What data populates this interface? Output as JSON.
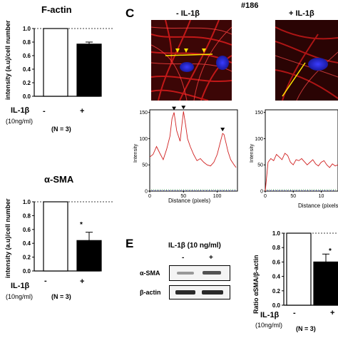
{
  "panel_a": {
    "title": "F-actin",
    "ylabel": "intensity (a.u)/cell number",
    "treatment_label": "IL-1β",
    "dose": "(10ng/ml)",
    "cond_minus": "-",
    "cond_plus": "+",
    "n": "(N = 3)",
    "star": "*",
    "ticks": [
      "1.0",
      "0.8",
      "0.6",
      "0.4",
      "0.2",
      "0.0"
    ]
  },
  "panel_b": {
    "title": "α-SMA",
    "ylabel": "intensity (a.u)/cell number",
    "treatment_label": "IL-1β",
    "dose": "(10ng/ml)",
    "cond_minus": "-",
    "cond_plus": "+",
    "n": "(N = 3)",
    "star": "*",
    "ticks": [
      "1.0",
      "0.8",
      "0.6",
      "0.4",
      "0.2",
      "0.0"
    ]
  },
  "panel_c": {
    "letter": "C",
    "sample_id": "#186",
    "img_minus_label": "- IL-1β",
    "img_plus_label": "+ IL-1β",
    "ylabel": "Intensity",
    "xlabel": "Distance (pixels)",
    "yticks": [
      "150",
      "100",
      "50",
      "0"
    ],
    "xticks_minus": [
      "0",
      "50",
      "100"
    ],
    "xticks_plus": [
      "0",
      "50",
      "10"
    ]
  },
  "panel_e": {
    "letter": "E",
    "header": "IL-1β (10 ng/ml)",
    "lane_minus": "-",
    "lane_plus": "+",
    "row1": "α-SMA",
    "row2": "β-actin",
    "ylabel": "Ratio αSMA/β-actin",
    "treatment_label": "IL-1β",
    "dose": "(10ng/ml)",
    "cond_minus": "-",
    "cond_plus": "+",
    "n": "(N = 3)",
    "star": "*",
    "ticks": [
      "1.0",
      "0.8",
      "0.6",
      "0.4",
      "0.2",
      "0.0"
    ]
  },
  "chart_data": [
    {
      "type": "bar",
      "title": "F-actin",
      "ylabel": "intensity (a.u)/cell number",
      "categories": [
        "-",
        "+"
      ],
      "values": [
        1.0,
        0.77
      ],
      "errors": [
        0,
        0.03
      ],
      "ylim": [
        0,
        1.0
      ],
      "bar_colors": [
        "#ffffff",
        "#000000"
      ]
    },
    {
      "type": "bar",
      "title": "α-SMA",
      "ylabel": "intensity (a.u)/cell number",
      "categories": [
        "-",
        "+"
      ],
      "values": [
        1.0,
        0.44
      ],
      "errors": [
        0,
        0.12
      ],
      "ylim": [
        0,
        1.0
      ],
      "bar_colors": [
        "#ffffff",
        "#000000"
      ]
    },
    {
      "type": "line",
      "xlabel": "Distance (pixels)",
      "ylabel": "Intensity",
      "xlim": [
        0,
        130
      ],
      "ylim": [
        0,
        155
      ],
      "x": [
        0,
        5,
        10,
        15,
        20,
        25,
        30,
        33,
        36,
        40,
        45,
        48,
        50,
        53,
        56,
        60,
        65,
        70,
        75,
        80,
        85,
        90,
        95,
        100,
        105,
        108,
        110,
        113,
        116,
        120,
        125,
        128
      ],
      "y": [
        65,
        70,
        85,
        72,
        60,
        80,
        105,
        138,
        150,
        115,
        95,
        130,
        152,
        128,
        100,
        85,
        70,
        58,
        62,
        55,
        50,
        48,
        55,
        70,
        95,
        110,
        108,
        92,
        75,
        60,
        50,
        45
      ]
    },
    {
      "type": "line",
      "xlabel": "Distance (pixels)",
      "ylabel": "Intensity",
      "xlim": [
        0,
        130
      ],
      "ylim": [
        0,
        155
      ],
      "x": [
        0,
        5,
        10,
        15,
        20,
        25,
        30,
        35,
        40,
        45,
        50,
        55,
        60,
        65,
        70,
        75,
        80,
        85,
        90,
        95,
        100,
        105,
        110,
        115,
        120,
        125,
        130
      ],
      "y": [
        0,
        55,
        62,
        58,
        70,
        65,
        60,
        72,
        68,
        55,
        50,
        60,
        58,
        62,
        56,
        50,
        55,
        60,
        52,
        48,
        55,
        58,
        50,
        45,
        52,
        48,
        50
      ]
    },
    {
      "type": "bar",
      "ylabel": "Ratio αSMA/β-actin",
      "categories": [
        "-",
        "+"
      ],
      "values": [
        1.0,
        0.6
      ],
      "errors": [
        0,
        0.11
      ],
      "ylim": [
        0,
        1.0
      ],
      "bar_colors": [
        "#ffffff",
        "#000000"
      ]
    }
  ]
}
